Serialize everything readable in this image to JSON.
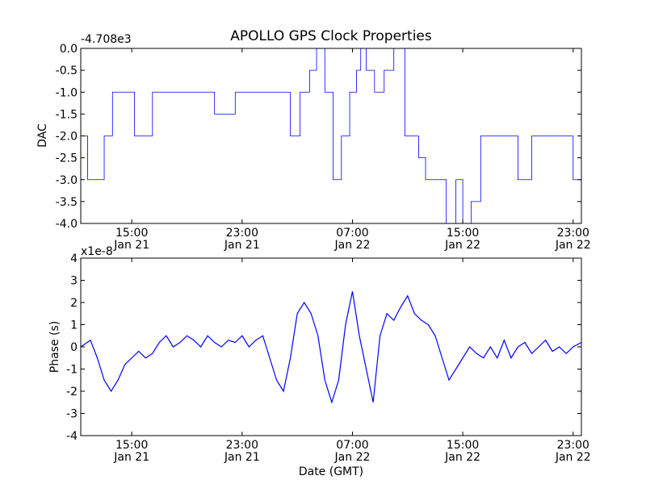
{
  "figure": {
    "title": "APOLLO GPS Clock Properties"
  },
  "chart_data": [
    {
      "type": "line",
      "title": "APOLLO GPS Clock Properties",
      "xlabel": "",
      "ylabel": "DAC",
      "y_offset_label": "-4.708e3",
      "ylim": [
        -4.0,
        0.0
      ],
      "yticks": [
        "0.0",
        "-0.5",
        "-1.0",
        "-1.5",
        "-2.0",
        "-2.5",
        "-3.0",
        "-3.5",
        "-4.0"
      ],
      "xlim_hours": [
        11.3,
        47.6
      ],
      "xticks": [
        {
          "time": "15:00",
          "date": "Jan 21"
        },
        {
          "time": "23:00",
          "date": "Jan 21"
        },
        {
          "time": "07:00",
          "date": "Jan 22"
        },
        {
          "time": "15:00",
          "date": "Jan 22"
        },
        {
          "time": "23:00",
          "date": "Jan 22"
        }
      ],
      "color": "#0000ff",
      "series": [
        {
          "x_hours": [
            11.3,
            11.8,
            13.0,
            13.6,
            14.3,
            15.2,
            16.5,
            18.0,
            19.5,
            21.0,
            22.5,
            24.0,
            25.5,
            26.5,
            27.2,
            27.9,
            28.4,
            29.0,
            29.6,
            30.2,
            30.8,
            31.3,
            31.6,
            32.0,
            32.6,
            33.3,
            34.0,
            34.8,
            35.2,
            35.8,
            36.3,
            37.0,
            37.8,
            38.5,
            39.0,
            39.6,
            40.3,
            41.0,
            42.0,
            43.0,
            44.0,
            45.0,
            46.0,
            47.0,
            47.6
          ],
          "y": [
            -2.0,
            -3.0,
            -2.0,
            -1.0,
            -1.0,
            -2.0,
            -1.0,
            -1.0,
            -1.0,
            -1.5,
            -1.0,
            -1.0,
            -1.0,
            -2.0,
            -1.0,
            -0.5,
            0.0,
            -1.0,
            -3.0,
            -2.0,
            -1.0,
            -0.5,
            0.0,
            -0.5,
            -1.0,
            -0.5,
            0.0,
            -2.0,
            -2.0,
            -2.5,
            -3.0,
            -3.0,
            -4.0,
            -3.0,
            -4.0,
            -3.5,
            -2.0,
            -2.0,
            -2.0,
            -3.0,
            -2.0,
            -2.0,
            -2.0,
            -3.0,
            -2.0
          ]
        }
      ]
    },
    {
      "type": "line",
      "title": "",
      "xlabel": "Date (GMT)",
      "ylabel": "Phase (s)",
      "y_offset_label": "x1e-8",
      "ylim": [
        -4,
        4
      ],
      "yticks": [
        "4",
        "3",
        "2",
        "1",
        "0",
        "-1",
        "-2",
        "-3",
        "-4"
      ],
      "xlim_hours": [
        11.3,
        47.6
      ],
      "xticks": [
        {
          "time": "15:00",
          "date": "Jan 21"
        },
        {
          "time": "23:00",
          "date": "Jan 21"
        },
        {
          "time": "07:00",
          "date": "Jan 22"
        },
        {
          "time": "15:00",
          "date": "Jan 22"
        },
        {
          "time": "23:00",
          "date": "Jan 22"
        }
      ],
      "color": "#0000ff",
      "series": [
        {
          "x_hours": [
            11.3,
            12.0,
            12.5,
            13.0,
            13.5,
            14.0,
            14.5,
            15.0,
            15.5,
            16.0,
            16.5,
            17.0,
            17.5,
            18.0,
            18.5,
            19.0,
            19.5,
            20.0,
            20.5,
            21.0,
            21.5,
            22.0,
            22.5,
            23.0,
            23.5,
            24.0,
            24.5,
            25.0,
            25.5,
            26.0,
            26.5,
            27.0,
            27.5,
            28.0,
            28.5,
            29.0,
            29.5,
            30.0,
            30.5,
            31.0,
            31.5,
            32.0,
            32.5,
            33.0,
            33.5,
            34.0,
            34.5,
            35.0,
            35.5,
            36.0,
            36.5,
            37.0,
            37.5,
            38.0,
            38.5,
            39.0,
            39.5,
            40.0,
            40.5,
            41.0,
            41.5,
            42.0,
            42.5,
            43.0,
            43.5,
            44.0,
            44.5,
            45.0,
            45.5,
            46.0,
            46.5,
            47.0,
            47.6
          ],
          "y": [
            0.0,
            0.3,
            -0.5,
            -1.5,
            -2.0,
            -1.5,
            -0.8,
            -0.5,
            -0.2,
            -0.5,
            -0.3,
            0.2,
            0.5,
            0.0,
            0.2,
            0.5,
            0.3,
            0.0,
            0.5,
            0.2,
            0.0,
            0.3,
            0.2,
            0.5,
            0.0,
            0.3,
            0.5,
            -0.5,
            -1.5,
            -2.0,
            -0.5,
            1.5,
            2.0,
            1.5,
            0.5,
            -1.5,
            -2.5,
            -1.5,
            1.0,
            2.5,
            0.5,
            -1.0,
            -2.5,
            0.5,
            1.5,
            1.2,
            1.8,
            2.3,
            1.5,
            1.2,
            1.0,
            0.5,
            -0.5,
            -1.5,
            -1.0,
            -0.5,
            0.0,
            -0.3,
            -0.5,
            0.0,
            -0.5,
            0.3,
            -0.5,
            0.0,
            0.2,
            -0.3,
            0.0,
            0.3,
            -0.2,
            0.0,
            -0.3,
            0.0,
            0.2
          ]
        }
      ]
    }
  ]
}
